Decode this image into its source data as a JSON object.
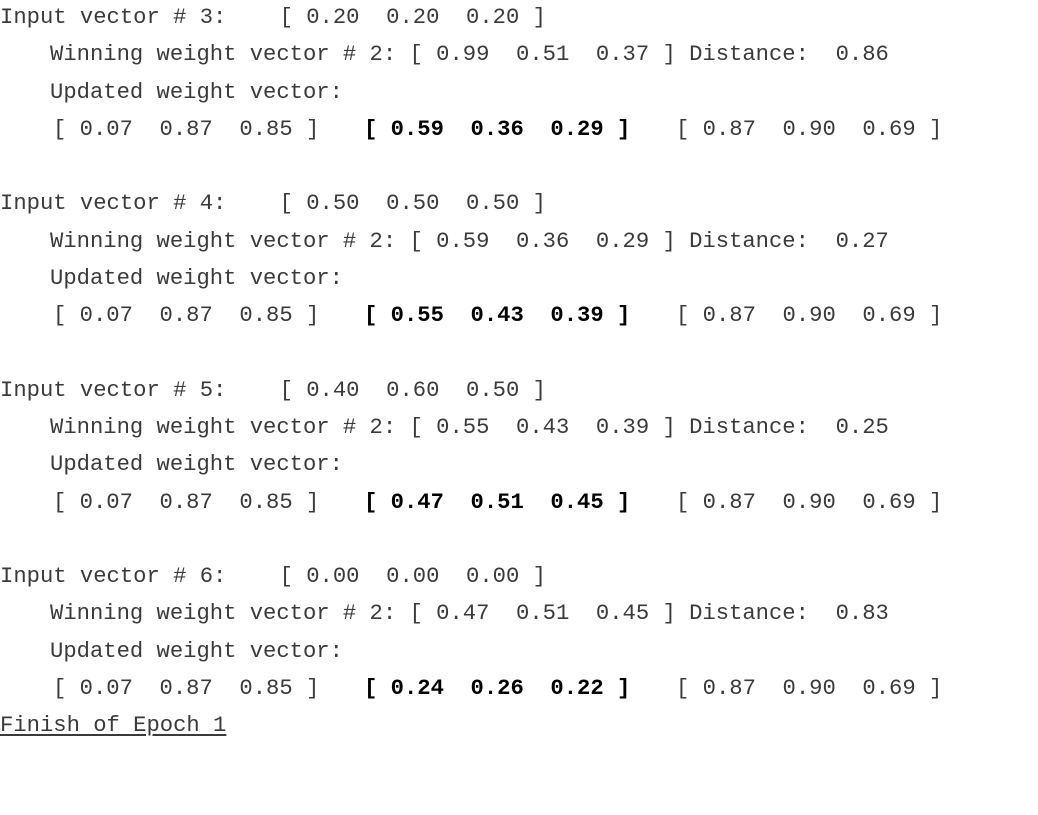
{
  "blocks": [
    {
      "input_line": "Input vector # 3:    [ 0.20  0.20  0.20 ]",
      "winning_line": "Winning weight vector # 2: [ 0.99  0.51  0.37 ] Distance:  0.86",
      "updated_label": "Updated weight vector:",
      "vector_before": "[ 0.07  0.87  0.85 ]",
      "vector_bold": "[ 0.59  0.36  0.29 ]",
      "vector_after": "[ 0.87  0.90  0.69 ]"
    },
    {
      "input_line": "Input vector # 4:    [ 0.50  0.50  0.50 ]",
      "winning_line": "Winning weight vector # 2: [ 0.59  0.36  0.29 ] Distance:  0.27",
      "updated_label": "Updated weight vector:",
      "vector_before": "[ 0.07  0.87  0.85 ]",
      "vector_bold": "[ 0.55  0.43  0.39 ]",
      "vector_after": "[ 0.87  0.90  0.69 ]"
    },
    {
      "input_line": "Input vector # 5:    [ 0.40  0.60  0.50 ]",
      "winning_line": "Winning weight vector # 2: [ 0.55  0.43  0.39 ] Distance:  0.25",
      "updated_label": "Updated weight vector:",
      "vector_before": "[ 0.07  0.87  0.85 ]",
      "vector_bold": "[ 0.47  0.51  0.45 ]",
      "vector_after": "[ 0.87  0.90  0.69 ]"
    },
    {
      "input_line": "Input vector # 6:    [ 0.00  0.00  0.00 ]",
      "winning_line": "Winning weight vector # 2: [ 0.47  0.51  0.45 ] Distance:  0.83",
      "updated_label": "Updated weight vector:",
      "vector_before": "[ 0.07  0.87  0.85 ]",
      "vector_bold": "[ 0.24  0.26  0.22 ]",
      "vector_after": "[ 0.87  0.90  0.69 ]"
    }
  ],
  "footer": "Finish of Epoch 1"
}
